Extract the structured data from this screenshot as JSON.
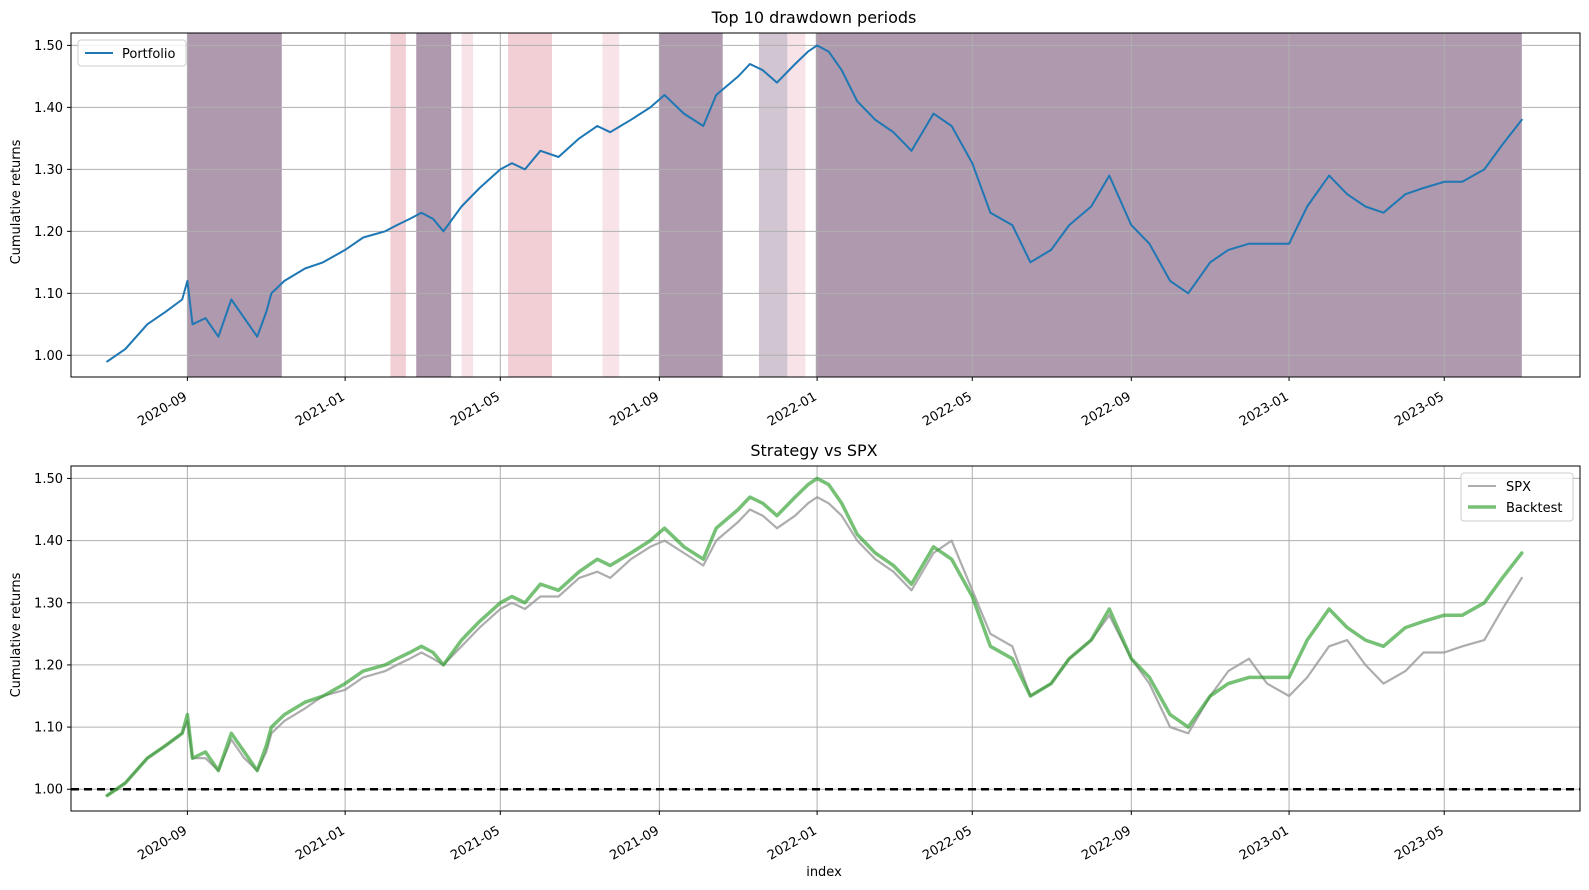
{
  "colors": {
    "portfolio": "#1f77b4",
    "backtest": "#2ca02c",
    "spx": "#999999",
    "grid": "#b0b0b0",
    "drawdown_top": "#8c6d8c",
    "drawdown_light": "#e8a7b3"
  },
  "x_ticks": [
    "2020-09",
    "2021-01",
    "2021-05",
    "2021-09",
    "2022-01",
    "2022-05",
    "2022-09",
    "2023-01",
    "2023-05"
  ],
  "chart_data": [
    {
      "type": "line",
      "title": "Top 10 drawdown periods",
      "xlabel": "",
      "ylabel": "Cumulative returns",
      "ylim": [
        0.965,
        1.52
      ],
      "xlim": [
        "2020-06-03",
        "2023-08-14"
      ],
      "y_ticks": [
        "1.00",
        "1.10",
        "1.20",
        "1.30",
        "1.40",
        "1.50"
      ],
      "grid": true,
      "legend": {
        "placement": "top-left",
        "entries": [
          "Portfolio"
        ]
      },
      "drawdown_periods": [
        {
          "start": "2020-09-01",
          "end": "2020-11-13",
          "intensity": "dark"
        },
        {
          "start": "2021-02-05",
          "end": "2021-02-17",
          "intensity": "light"
        },
        {
          "start": "2021-02-25",
          "end": "2021-03-24",
          "intensity": "dark"
        },
        {
          "start": "2021-04-01",
          "end": "2021-04-10",
          "intensity": "faint"
        },
        {
          "start": "2021-05-07",
          "end": "2021-06-10",
          "intensity": "light"
        },
        {
          "start": "2021-07-19",
          "end": "2021-08-01",
          "intensity": "faint"
        },
        {
          "start": "2021-09-01",
          "end": "2021-10-20",
          "intensity": "dark"
        },
        {
          "start": "2021-11-17",
          "end": "2021-12-09",
          "intensity": "mid"
        },
        {
          "start": "2021-12-09",
          "end": "2021-12-23",
          "intensity": "faint"
        },
        {
          "start": "2021-12-31",
          "end": "2023-06-30",
          "intensity": "dark"
        }
      ],
      "series": [
        {
          "name": "Portfolio",
          "x": [
            "2020-07-01",
            "2020-07-15",
            "2020-08-01",
            "2020-08-15",
            "2020-08-28",
            "2020-09-01",
            "2020-09-05",
            "2020-09-15",
            "2020-09-25",
            "2020-10-05",
            "2020-10-15",
            "2020-10-25",
            "2020-11-01",
            "2020-11-05",
            "2020-11-15",
            "2020-12-01",
            "2020-12-15",
            "2021-01-01",
            "2021-01-15",
            "2021-02-01",
            "2021-02-10",
            "2021-02-20",
            "2021-03-01",
            "2021-03-10",
            "2021-03-18",
            "2021-04-01",
            "2021-04-15",
            "2021-05-01",
            "2021-05-10",
            "2021-05-20",
            "2021-06-01",
            "2021-06-15",
            "2021-07-01",
            "2021-07-15",
            "2021-07-25",
            "2021-08-10",
            "2021-08-25",
            "2021-09-05",
            "2021-09-20",
            "2021-10-05",
            "2021-10-15",
            "2021-11-01",
            "2021-11-10",
            "2021-11-20",
            "2021-12-01",
            "2021-12-15",
            "2021-12-25",
            "2022-01-01",
            "2022-01-10",
            "2022-01-20",
            "2022-02-01",
            "2022-02-15",
            "2022-03-01",
            "2022-03-15",
            "2022-04-01",
            "2022-04-15",
            "2022-05-01",
            "2022-05-15",
            "2022-06-01",
            "2022-06-15",
            "2022-07-01",
            "2022-07-15",
            "2022-08-01",
            "2022-08-15",
            "2022-09-01",
            "2022-09-15",
            "2022-10-01",
            "2022-10-15",
            "2022-11-01",
            "2022-11-15",
            "2022-12-01",
            "2022-12-15",
            "2023-01-01",
            "2023-01-15",
            "2023-02-01",
            "2023-02-15",
            "2023-03-01",
            "2023-03-15",
            "2023-04-01",
            "2023-04-15",
            "2023-05-01",
            "2023-05-15",
            "2023-06-01",
            "2023-06-15",
            "2023-06-30"
          ],
          "values": [
            0.99,
            1.01,
            1.05,
            1.07,
            1.09,
            1.12,
            1.05,
            1.06,
            1.03,
            1.09,
            1.06,
            1.03,
            1.07,
            1.1,
            1.12,
            1.14,
            1.15,
            1.17,
            1.19,
            1.2,
            1.21,
            1.22,
            1.23,
            1.22,
            1.2,
            1.24,
            1.27,
            1.3,
            1.31,
            1.3,
            1.33,
            1.32,
            1.35,
            1.37,
            1.36,
            1.38,
            1.4,
            1.42,
            1.39,
            1.37,
            1.42,
            1.45,
            1.47,
            1.46,
            1.44,
            1.47,
            1.49,
            1.5,
            1.49,
            1.46,
            1.41,
            1.38,
            1.36,
            1.33,
            1.39,
            1.37,
            1.31,
            1.23,
            1.21,
            1.15,
            1.17,
            1.21,
            1.24,
            1.29,
            1.21,
            1.18,
            1.12,
            1.1,
            1.15,
            1.17,
            1.18,
            1.18,
            1.18,
            1.24,
            1.29,
            1.26,
            1.24,
            1.23,
            1.26,
            1.27,
            1.28,
            1.28,
            1.3,
            1.34,
            1.38
          ]
        }
      ]
    },
    {
      "type": "line",
      "title": "Strategy vs SPX",
      "xlabel": "index",
      "ylabel": "Cumulative returns",
      "ylim": [
        0.965,
        1.52
      ],
      "xlim": [
        "2020-06-03",
        "2023-08-14"
      ],
      "y_ticks": [
        "1.00",
        "1.10",
        "1.20",
        "1.30",
        "1.40",
        "1.50"
      ],
      "grid": true,
      "baseline": 1.0,
      "legend": {
        "placement": "top-right",
        "entries": [
          "SPX",
          "Backtest"
        ]
      },
      "series": [
        {
          "name": "SPX",
          "x": [
            "2020-07-01",
            "2020-07-15",
            "2020-08-01",
            "2020-08-15",
            "2020-08-28",
            "2020-09-01",
            "2020-09-05",
            "2020-09-15",
            "2020-09-25",
            "2020-10-05",
            "2020-10-15",
            "2020-10-25",
            "2020-11-01",
            "2020-11-05",
            "2020-11-15",
            "2020-12-01",
            "2020-12-15",
            "2021-01-01",
            "2021-01-15",
            "2021-02-01",
            "2021-02-10",
            "2021-02-20",
            "2021-03-01",
            "2021-03-10",
            "2021-03-18",
            "2021-04-01",
            "2021-04-15",
            "2021-05-01",
            "2021-05-10",
            "2021-05-20",
            "2021-06-01",
            "2021-06-15",
            "2021-07-01",
            "2021-07-15",
            "2021-07-25",
            "2021-08-10",
            "2021-08-25",
            "2021-09-05",
            "2021-09-20",
            "2021-10-05",
            "2021-10-15",
            "2021-11-01",
            "2021-11-10",
            "2021-11-20",
            "2021-12-01",
            "2021-12-15",
            "2021-12-25",
            "2022-01-01",
            "2022-01-10",
            "2022-01-20",
            "2022-02-01",
            "2022-02-15",
            "2022-03-01",
            "2022-03-15",
            "2022-04-01",
            "2022-04-15",
            "2022-05-01",
            "2022-05-15",
            "2022-06-01",
            "2022-06-15",
            "2022-07-01",
            "2022-07-15",
            "2022-08-01",
            "2022-08-15",
            "2022-09-01",
            "2022-09-15",
            "2022-10-01",
            "2022-10-15",
            "2022-11-01",
            "2022-11-15",
            "2022-12-01",
            "2022-12-15",
            "2023-01-01",
            "2023-01-15",
            "2023-02-01",
            "2023-02-15",
            "2023-03-01",
            "2023-03-15",
            "2023-04-01",
            "2023-04-15",
            "2023-05-01",
            "2023-05-15",
            "2023-06-01",
            "2023-06-15",
            "2023-06-30"
          ],
          "values": [
            0.99,
            1.01,
            1.05,
            1.07,
            1.09,
            1.11,
            1.05,
            1.05,
            1.03,
            1.08,
            1.05,
            1.03,
            1.06,
            1.09,
            1.11,
            1.13,
            1.15,
            1.16,
            1.18,
            1.19,
            1.2,
            1.21,
            1.22,
            1.21,
            1.2,
            1.23,
            1.26,
            1.29,
            1.3,
            1.29,
            1.31,
            1.31,
            1.34,
            1.35,
            1.34,
            1.37,
            1.39,
            1.4,
            1.38,
            1.36,
            1.4,
            1.43,
            1.45,
            1.44,
            1.42,
            1.44,
            1.46,
            1.47,
            1.46,
            1.44,
            1.4,
            1.37,
            1.35,
            1.32,
            1.38,
            1.4,
            1.32,
            1.25,
            1.23,
            1.15,
            1.17,
            1.21,
            1.24,
            1.28,
            1.21,
            1.17,
            1.1,
            1.09,
            1.15,
            1.19,
            1.21,
            1.17,
            1.15,
            1.18,
            1.23,
            1.24,
            1.2,
            1.17,
            1.19,
            1.22,
            1.22,
            1.23,
            1.24,
            1.29,
            1.34
          ]
        },
        {
          "name": "Backtest",
          "x": [
            "2020-07-01",
            "2020-07-15",
            "2020-08-01",
            "2020-08-15",
            "2020-08-28",
            "2020-09-01",
            "2020-09-05",
            "2020-09-15",
            "2020-09-25",
            "2020-10-05",
            "2020-10-15",
            "2020-10-25",
            "2020-11-01",
            "2020-11-05",
            "2020-11-15",
            "2020-12-01",
            "2020-12-15",
            "2021-01-01",
            "2021-01-15",
            "2021-02-01",
            "2021-02-10",
            "2021-02-20",
            "2021-03-01",
            "2021-03-10",
            "2021-03-18",
            "2021-04-01",
            "2021-04-15",
            "2021-05-01",
            "2021-05-10",
            "2021-05-20",
            "2021-06-01",
            "2021-06-15",
            "2021-07-01",
            "2021-07-15",
            "2021-07-25",
            "2021-08-10",
            "2021-08-25",
            "2021-09-05",
            "2021-09-20",
            "2021-10-05",
            "2021-10-15",
            "2021-11-01",
            "2021-11-10",
            "2021-11-20",
            "2021-12-01",
            "2021-12-15",
            "2021-12-25",
            "2022-01-01",
            "2022-01-10",
            "2022-01-20",
            "2022-02-01",
            "2022-02-15",
            "2022-03-01",
            "2022-03-15",
            "2022-04-01",
            "2022-04-15",
            "2022-05-01",
            "2022-05-15",
            "2022-06-01",
            "2022-06-15",
            "2022-07-01",
            "2022-07-15",
            "2022-08-01",
            "2022-08-15",
            "2022-09-01",
            "2022-09-15",
            "2022-10-01",
            "2022-10-15",
            "2022-11-01",
            "2022-11-15",
            "2022-12-01",
            "2022-12-15",
            "2023-01-01",
            "2023-01-15",
            "2023-02-01",
            "2023-02-15",
            "2023-03-01",
            "2023-03-15",
            "2023-04-01",
            "2023-04-15",
            "2023-05-01",
            "2023-05-15",
            "2023-06-01",
            "2023-06-15",
            "2023-06-30"
          ],
          "values": [
            0.99,
            1.01,
            1.05,
            1.07,
            1.09,
            1.12,
            1.05,
            1.06,
            1.03,
            1.09,
            1.06,
            1.03,
            1.07,
            1.1,
            1.12,
            1.14,
            1.15,
            1.17,
            1.19,
            1.2,
            1.21,
            1.22,
            1.23,
            1.22,
            1.2,
            1.24,
            1.27,
            1.3,
            1.31,
            1.3,
            1.33,
            1.32,
            1.35,
            1.37,
            1.36,
            1.38,
            1.4,
            1.42,
            1.39,
            1.37,
            1.42,
            1.45,
            1.47,
            1.46,
            1.44,
            1.47,
            1.49,
            1.5,
            1.49,
            1.46,
            1.41,
            1.38,
            1.36,
            1.33,
            1.39,
            1.37,
            1.31,
            1.23,
            1.21,
            1.15,
            1.17,
            1.21,
            1.24,
            1.29,
            1.21,
            1.18,
            1.12,
            1.1,
            1.15,
            1.17,
            1.18,
            1.18,
            1.18,
            1.24,
            1.29,
            1.26,
            1.24,
            1.23,
            1.26,
            1.27,
            1.28,
            1.28,
            1.3,
            1.34,
            1.38
          ]
        }
      ]
    }
  ]
}
